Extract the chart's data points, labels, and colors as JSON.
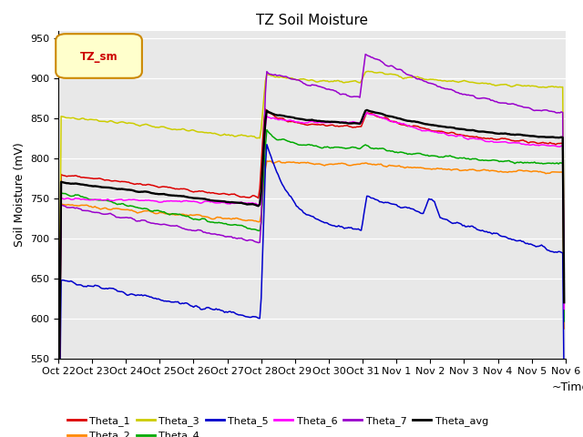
{
  "title": "TZ Soil Moisture",
  "ylabel": "Soil Moisture (mV)",
  "xlabel": "~Time",
  "legend_label": "TZ_sm",
  "ylim": [
    550,
    960
  ],
  "yticks": [
    550,
    600,
    650,
    700,
    750,
    800,
    850,
    900,
    950
  ],
  "series_colors": {
    "Theta_1": "#dd0000",
    "Theta_2": "#ff8800",
    "Theta_3": "#cccc00",
    "Theta_4": "#00aa00",
    "Theta_5": "#0000cc",
    "Theta_6": "#ff00ff",
    "Theta_7": "#9900cc",
    "Theta_avg": "#000000"
  },
  "background_color": "#e8e8e8",
  "n_points": 360,
  "x_start": 0,
  "x_end": 360,
  "xtick_labels": [
    "Oct 22",
    "Oct 23",
    "Oct 24",
    "Oct 25",
    "Oct 26",
    "Oct 27",
    "Oct 28",
    "Oct 29",
    "Oct 30",
    "Oct 31",
    "Nov 1",
    "Nov 2",
    "Nov 3",
    "Nov 4",
    "Nov 5",
    "Nov 6"
  ],
  "xtick_positions": [
    0,
    24,
    48,
    72,
    96,
    120,
    144,
    168,
    192,
    216,
    240,
    264,
    288,
    312,
    336,
    360
  ]
}
